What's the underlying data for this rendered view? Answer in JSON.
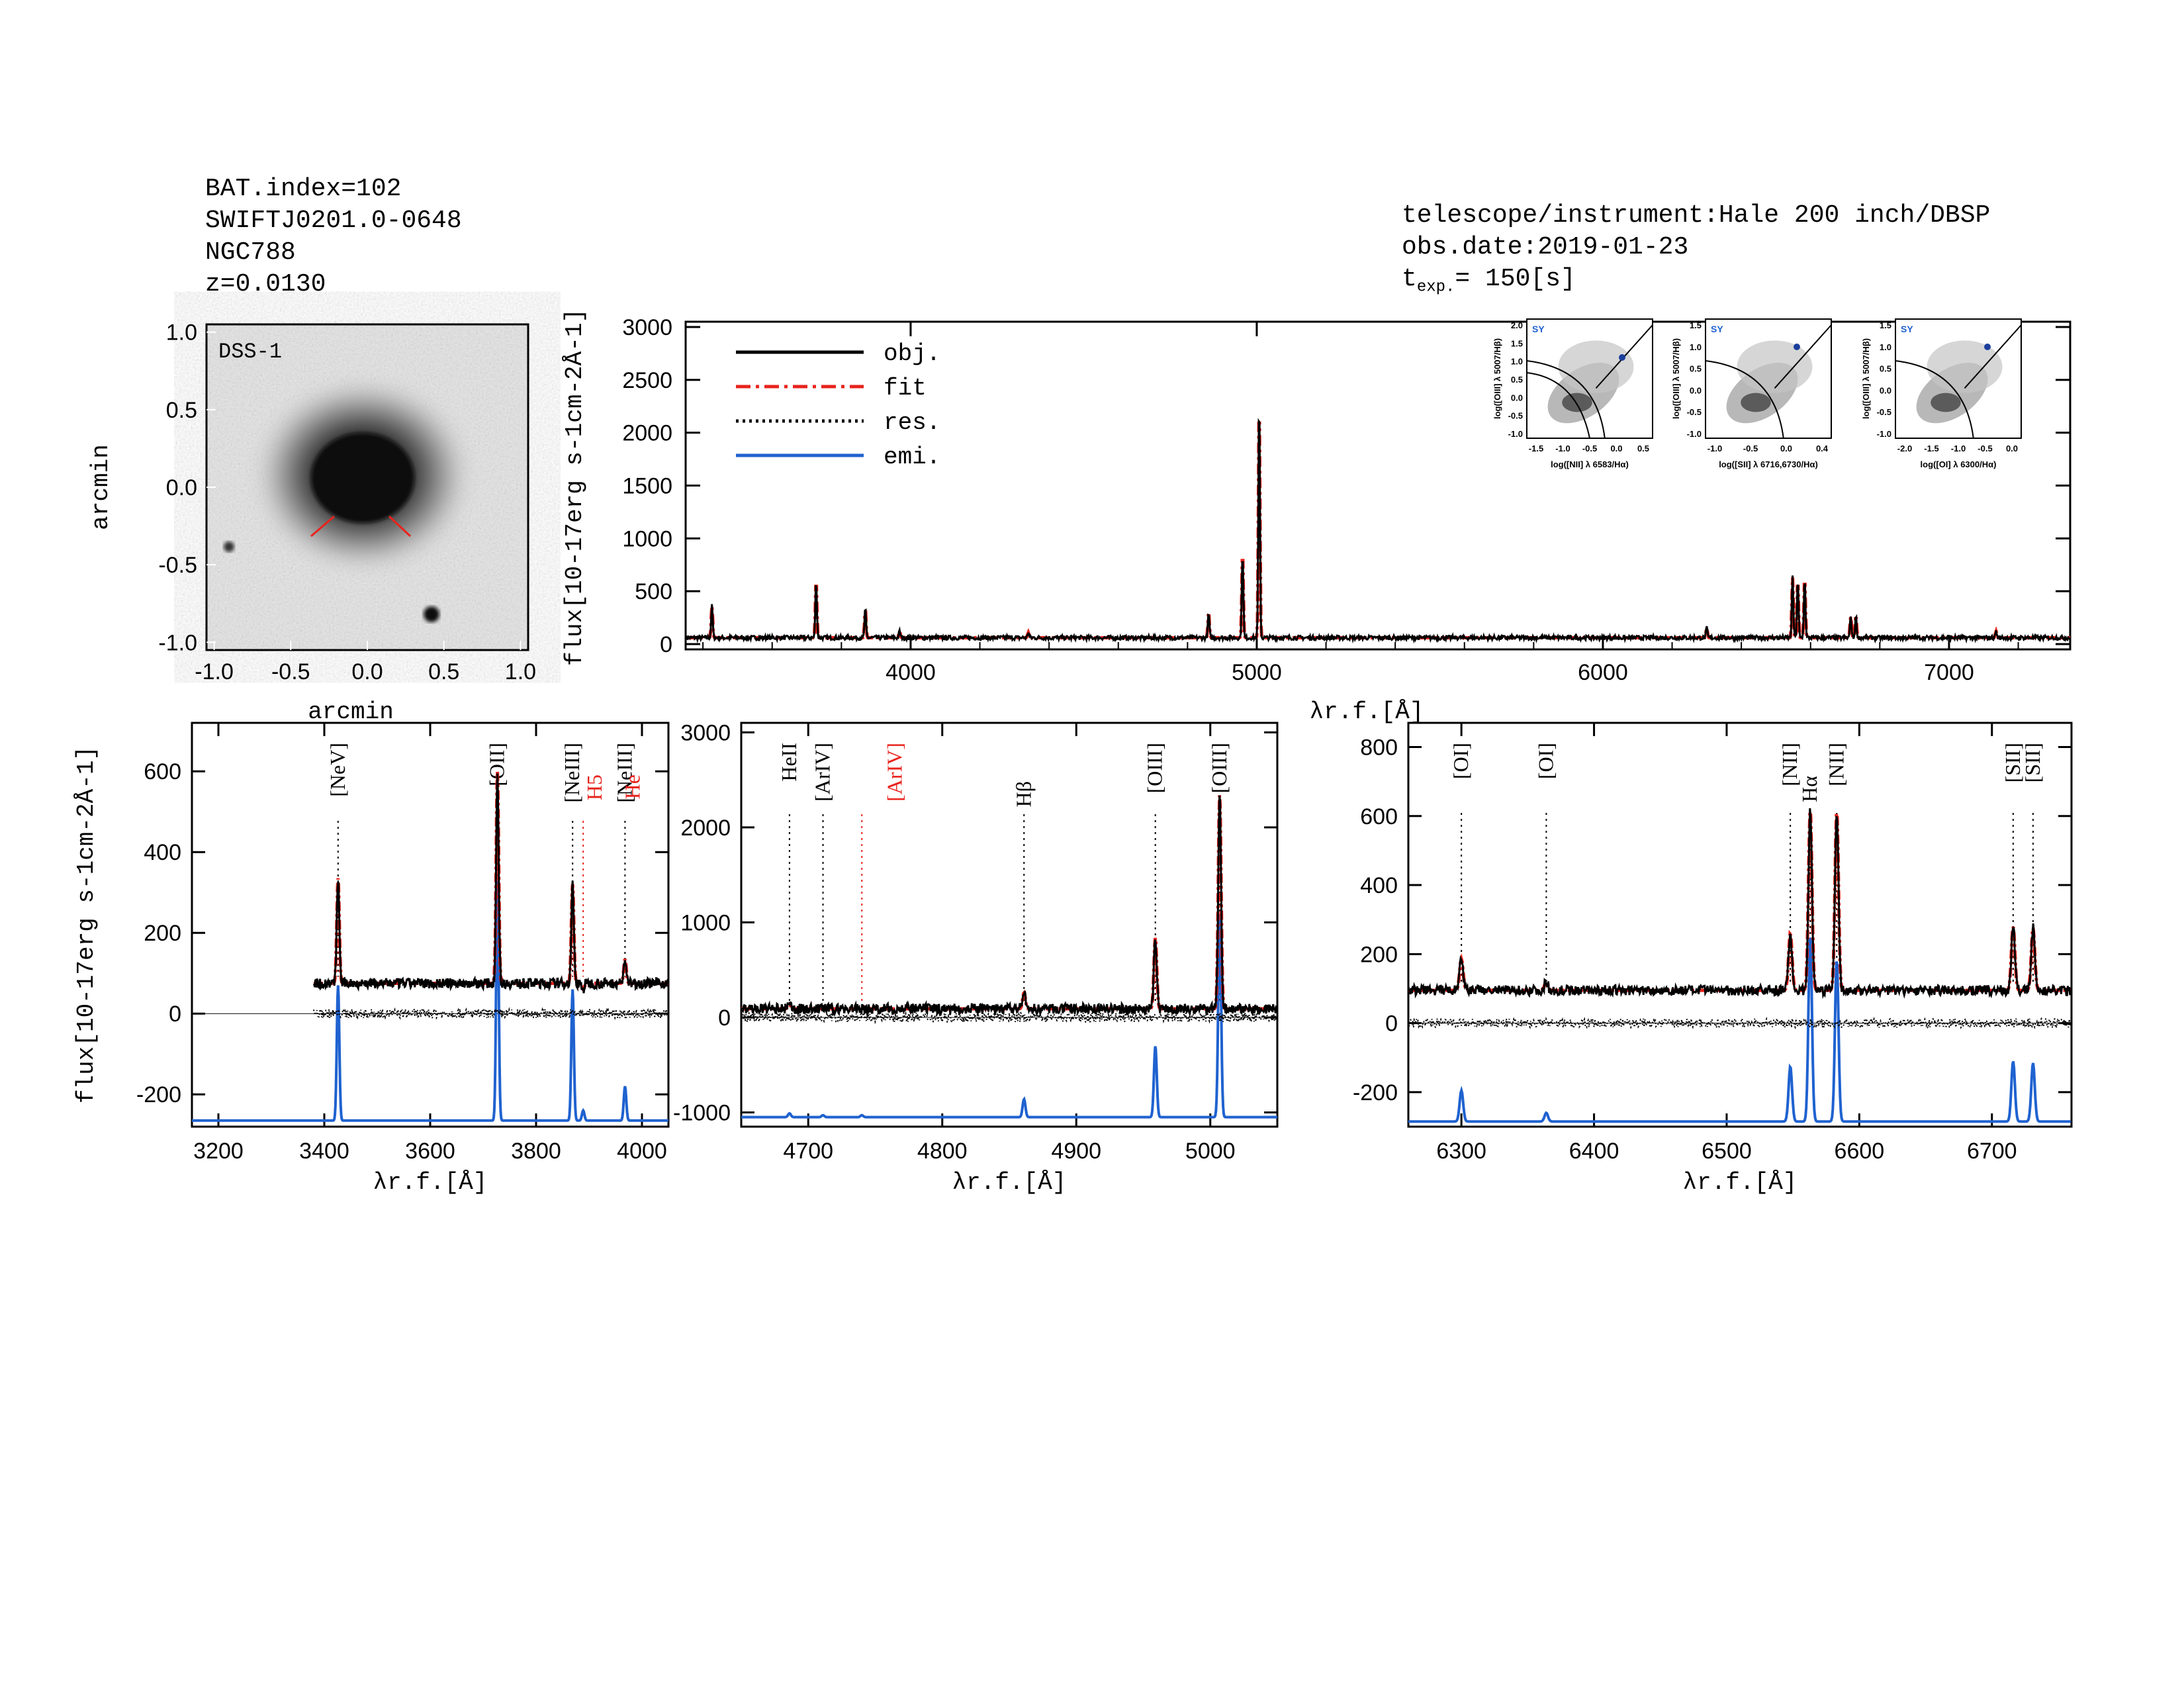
{
  "header_left": {
    "bat_index": "BAT.index=102",
    "swift_id": "SWIFTJ0201.0-0648",
    "galaxy": "NGC788",
    "redshift": "z=0.0130"
  },
  "header_right": {
    "instrument": "telescope/instrument:Hale 200 inch/DBSP",
    "obs_date": "obs.date:2019-01-23",
    "texp_prefix": "t",
    "texp_sub": "exp.",
    "texp_value": "= 150[s]"
  },
  "image_panel": {
    "label": "DSS-1",
    "xlabel": "arcmin",
    "ylabel": "arcmin",
    "ticks": [
      "-1.0",
      "-0.5",
      "0.0",
      "0.5",
      "1.0"
    ]
  },
  "main_spectrum": {
    "ylabel": "flux[10-17erg s-1cm-2Å-1]",
    "xlabel": "λr.f.[Å]",
    "yticks": [
      "0",
      "500",
      "1000",
      "1500",
      "2000",
      "2500",
      "3000"
    ],
    "xticks": [
      "4000",
      "5000",
      "6000",
      "7000"
    ],
    "legend": [
      {
        "label": "obj.",
        "color": "#000000",
        "style": "solid"
      },
      {
        "label": "fit",
        "color": "#e8231c",
        "style": "dash-dot"
      },
      {
        "label": "res.",
        "color": "#000000",
        "style": "dotted"
      },
      {
        "label": "emi.",
        "color": "#1f62d0",
        "style": "solid"
      }
    ]
  },
  "bpt_insets": [
    {
      "class_label": "SY",
      "xlabel": "log([NII] λ 6583/Hα)",
      "ylabel": "log([OIII] λ 5007/Hβ)",
      "xticks": [
        "-1.5",
        "-1.0",
        "-0.5",
        "0.0",
        "0.5"
      ],
      "yticks": [
        "2.0",
        "1.5",
        "1.0",
        "0.5",
        "0.0",
        "-0.5",
        "-1.0"
      ]
    },
    {
      "class_label": "SY",
      "xlabel": "log([SII] λ 6716,6730/Hα)",
      "ylabel": "log([OIII] λ 5007/Hβ)",
      "xticks": [
        "-1.0",
        "-0.5",
        "0.0",
        "0.4"
      ],
      "yticks": [
        "1.5",
        "1.0",
        "0.5",
        "0.0",
        "-0.5",
        "-1.0"
      ]
    },
    {
      "class_label": "SY",
      "xlabel": "log([OI] λ 6300/Hα)",
      "ylabel": "log([OIII] λ 5007/Hβ)",
      "xticks": [
        "-2.0",
        "-1.5",
        "-1.0",
        "-0.5",
        "0.0"
      ],
      "yticks": [
        "1.5",
        "1.0",
        "0.5",
        "0.0",
        "-0.5",
        "-1.0"
      ]
    }
  ],
  "zoom_panels": [
    {
      "name": "zoom-3400",
      "xticks": [
        "3200",
        "3400",
        "3600",
        "3800",
        "4000"
      ],
      "yticks": [
        "-200",
        "0",
        "200",
        "400",
        "600"
      ],
      "ylabel": "flux[10-17erg s-1cm-2Å-1]",
      "xlabel": "λr.f.[Å]",
      "lines": [
        {
          "label": "[NeV]",
          "color": "#000000"
        },
        {
          "label": "[OII]",
          "color": "#000000"
        },
        {
          "label": "[NeIII]",
          "color": "#000000"
        },
        {
          "label": "H5",
          "color": "#e8231c"
        },
        {
          "label": "[NeIII]",
          "color": "#000000"
        },
        {
          "label": "He",
          "color": "#e8231c"
        }
      ]
    },
    {
      "name": "zoom-4800",
      "xticks": [
        "4700",
        "4800",
        "4900",
        "5000"
      ],
      "yticks": [
        "-1000",
        "0",
        "1000",
        "2000",
        "3000"
      ],
      "xlabel": "λr.f.[Å]",
      "lines": [
        {
          "label": "HeII",
          "color": "#000000"
        },
        {
          "label": "[ArIV]",
          "color": "#000000"
        },
        {
          "label": "[ArIV]",
          "color": "#e8231c"
        },
        {
          "label": "Hβ",
          "color": "#000000"
        },
        {
          "label": "[OIII]",
          "color": "#000000"
        },
        {
          "label": "[OIII]",
          "color": "#000000"
        }
      ]
    },
    {
      "name": "zoom-6500",
      "xticks": [
        "6300",
        "6400",
        "6500",
        "6600",
        "6700"
      ],
      "yticks": [
        "-200",
        "0",
        "200",
        "400",
        "600",
        "800"
      ],
      "xlabel": "λr.f.[Å]",
      "lines": [
        {
          "label": "[OI]",
          "color": "#000000"
        },
        {
          "label": "[OI]",
          "color": "#000000"
        },
        {
          "label": "[NII]",
          "color": "#000000"
        },
        {
          "label": "Hα",
          "color": "#000000"
        },
        {
          "label": "[NII]",
          "color": "#000000"
        },
        {
          "label": "[SII]",
          "color": "#000000"
        },
        {
          "label": "[SII]",
          "color": "#000000"
        }
      ]
    }
  ],
  "chart_data": [
    {
      "type": "line",
      "panel": "main",
      "xlim": [
        3350,
        7350
      ],
      "ylim": [
        -50,
        3050
      ],
      "continuum": 60,
      "emission_lines": [
        {
          "x": 3426,
          "peak": 300
        },
        {
          "x": 3727,
          "peak": 540
        },
        {
          "x": 3869,
          "peak": 270
        },
        {
          "x": 3968,
          "peak": 60
        },
        {
          "x": 4340,
          "peak": 50
        },
        {
          "x": 4861,
          "peak": 230
        },
        {
          "x": 4959,
          "peak": 810
        },
        {
          "x": 5007,
          "peak": 2250
        },
        {
          "x": 6300,
          "peak": 90
        },
        {
          "x": 6548,
          "peak": 570
        },
        {
          "x": 6563,
          "peak": 540
        },
        {
          "x": 6583,
          "peak": 560
        },
        {
          "x": 6716,
          "peak": 200
        },
        {
          "x": 6731,
          "peak": 200
        },
        {
          "x": 7136,
          "peak": 60
        }
      ],
      "series": [
        {
          "name": "obj."
        },
        {
          "name": "fit"
        },
        {
          "name": "res."
        },
        {
          "name": "emi."
        }
      ]
    },
    {
      "type": "line",
      "panel": "zoom-3400",
      "xlim": [
        3150,
        4050
      ],
      "ylim": [
        -280,
        720
      ],
      "data_start": 3380,
      "continuum": 75,
      "emi_base": -265,
      "lines": [
        {
          "x": 3426,
          "obj": 335,
          "emi": 70
        },
        {
          "x": 3727,
          "obj": 600,
          "emi": 330
        },
        {
          "x": 3869,
          "obj": 320,
          "emi": 60
        },
        {
          "x": 3889,
          "obj": 60,
          "emi": -240
        },
        {
          "x": 3968,
          "obj": 135,
          "emi": -180
        }
      ]
    },
    {
      "type": "line",
      "panel": "zoom-4800",
      "xlim": [
        4650,
        5050
      ],
      "ylim": [
        -1150,
        3100
      ],
      "continuum": 90,
      "emi_base": -1050,
      "lines": [
        {
          "x": 4686,
          "obj": 130,
          "emi": -1010
        },
        {
          "x": 4711,
          "obj": 100,
          "emi": -1030
        },
        {
          "x": 4740,
          "obj": 100,
          "emi": -1030
        },
        {
          "x": 4861,
          "obj": 260,
          "emi": -860
        },
        {
          "x": 4959,
          "obj": 840,
          "emi": -300
        },
        {
          "x": 5007,
          "obj": 2350,
          "emi": 1100
        }
      ]
    },
    {
      "type": "line",
      "panel": "zoom-6500",
      "xlim": [
        6260,
        6760
      ],
      "ylim": [
        -300,
        870
      ],
      "continuum": 95,
      "emi_base": -285,
      "lines": [
        {
          "x": 6300,
          "obj": 185,
          "emi": -195
        },
        {
          "x": 6364,
          "obj": 120,
          "emi": -260
        },
        {
          "x": 6548,
          "obj": 260,
          "emi": -125
        },
        {
          "x": 6563,
          "obj": 620,
          "emi": 255
        },
        {
          "x": 6583,
          "obj": 615,
          "emi": 185
        },
        {
          "x": 6716,
          "obj": 280,
          "emi": -110
        },
        {
          "x": 6731,
          "obj": 275,
          "emi": -115
        }
      ]
    }
  ]
}
